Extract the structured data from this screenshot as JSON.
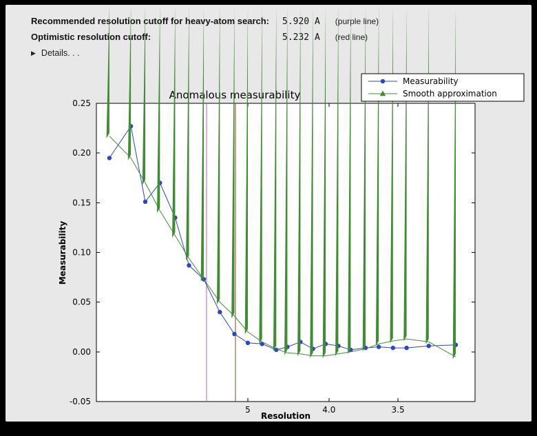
{
  "panel": {
    "bg": "#e8e8e8",
    "frame": "#000000"
  },
  "header": {
    "rows": [
      {
        "label": "Recommended resolution cutoff for heavy-atom search:",
        "value": "5.920 A",
        "note": "(purple line)"
      },
      {
        "label": "Optimistic resolution cutoff:",
        "value": "5.232 A",
        "note": "(red line)"
      }
    ],
    "details_label": "Details. . .",
    "disclosure_icon": "right-triangle"
  },
  "chart_data": {
    "type": "line",
    "title": "Anomalous measurability",
    "xlabel": "Resolution",
    "ylabel": "Measurability",
    "plot_bg": "#ffffff",
    "ylim": [
      -0.05,
      0.25
    ],
    "y_ticks": [
      0.25,
      0.2,
      0.15,
      0.1,
      0.05,
      0.0,
      -0.05
    ],
    "y_tick_labels": [
      "0.25",
      "0.20",
      "0.15",
      "0.10",
      "0.05",
      "0.00",
      "-0.05"
    ],
    "x_axis": {
      "scale": "inverse_d_squared",
      "unit": "Angstrom",
      "tick_values": [
        5.0,
        4.0,
        3.5
      ],
      "tick_labels": [
        "5",
        "4.0",
        "3.5"
      ]
    },
    "x_range_inv_d2": [
      -0.002,
      0.103
    ],
    "x_resolution": [
      25.0,
      11.5,
      9.3,
      8.0,
      7.1,
      6.5,
      6.0,
      5.57,
      5.25,
      5.0,
      4.77,
      4.57,
      4.43,
      4.28,
      4.15,
      4.03,
      3.92,
      3.82,
      3.71,
      3.62,
      3.53,
      3.45,
      3.33,
      3.2
    ],
    "series": [
      {
        "name": "Measurability",
        "color": "#2c44cc",
        "marker": "circle",
        "values": [
          0.195,
          0.227,
          0.151,
          0.17,
          0.135,
          0.087,
          0.073,
          0.04,
          0.018,
          0.009,
          0.008,
          0.002,
          0.005,
          0.01,
          0.003,
          0.008,
          0.006,
          0.002,
          0.004,
          0.005,
          0.004,
          0.004,
          0.006,
          0.007
        ]
      },
      {
        "name": "Smooth approximation",
        "color": "#3f8c33",
        "marker": "triangle",
        "values": [
          0.217,
          0.195,
          0.17,
          0.142,
          0.117,
          0.094,
          0.073,
          0.05,
          0.036,
          0.02,
          0.01,
          0.003,
          -0.001,
          -0.002,
          -0.004,
          -0.004,
          -0.002,
          0.0,
          0.003,
          0.008,
          0.011,
          0.013,
          0.01,
          -0.005
        ]
      }
    ],
    "vlines": [
      {
        "name": "purple-cutoff",
        "resolution": 5.92,
        "color": "#c45ec4"
      },
      {
        "name": "red-cutoff",
        "resolution": 5.232,
        "color": "#9e3d1e"
      }
    ],
    "legend": {
      "position": "top-right",
      "entries": [
        "Measurability",
        "Smooth approximation"
      ]
    }
  }
}
